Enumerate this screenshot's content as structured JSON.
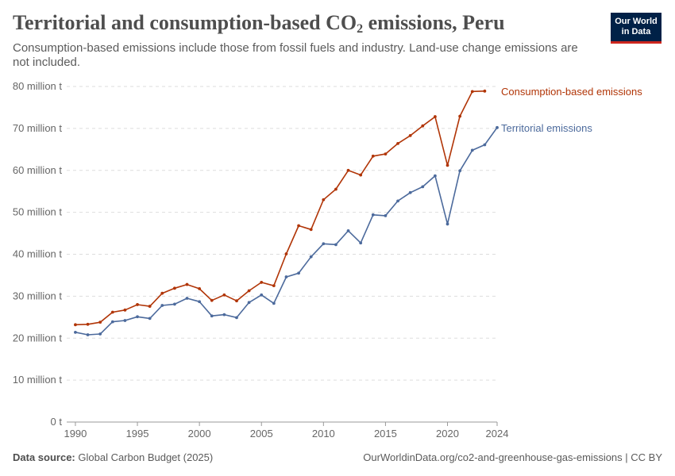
{
  "header": {
    "title_main": "Territorial and consumption-based CO",
    "title_sub": "2",
    "title_tail": " emissions, Peru",
    "subtitle": "Consumption-based emissions include those from fossil fuels and industry. Land-use change emissions are not included."
  },
  "logo": {
    "line1": "Our World",
    "line2": "in Data"
  },
  "footer": {
    "source_label": "Data source:",
    "source_value": "Global Carbon Budget (2025)",
    "url": "OurWorldinData.org/co2-and-greenhouse-gas-emissions | CC BY"
  },
  "chart_data": {
    "type": "line",
    "title": "Territorial and consumption-based CO₂ emissions, Peru",
    "xlabel": "",
    "ylabel": "",
    "x": [
      1990,
      1991,
      1992,
      1993,
      1994,
      1995,
      1996,
      1997,
      1998,
      1999,
      2000,
      2001,
      2002,
      2003,
      2004,
      2005,
      2006,
      2007,
      2008,
      2009,
      2010,
      2011,
      2012,
      2013,
      2014,
      2015,
      2016,
      2017,
      2018,
      2019,
      2020,
      2021,
      2022,
      2023,
      2024
    ],
    "xlim": [
      1989.3,
      2024
    ],
    "ylim": [
      0,
      80
    ],
    "y_ticks": [
      0,
      10,
      20,
      30,
      40,
      50,
      60,
      70,
      80
    ],
    "y_tick_labels": [
      "0 t",
      "10 million t",
      "20 million t",
      "30 million t",
      "40 million t",
      "50 million t",
      "60 million t",
      "70 million t",
      "80 million t"
    ],
    "x_ticks": [
      1990,
      1995,
      2000,
      2005,
      2010,
      2015,
      2020,
      2024
    ],
    "x_tick_labels": [
      "1990",
      "1995",
      "2000",
      "2005",
      "2010",
      "2015",
      "2020",
      "2024"
    ],
    "grid": "horizontal dashed",
    "legend": "inline labels at line ends (right)",
    "series": [
      {
        "name": "Consumption-based emissions",
        "color": "#b13507",
        "values": [
          23.2,
          23.3,
          23.8,
          26.2,
          26.7,
          28.0,
          27.6,
          30.7,
          31.9,
          32.8,
          31.8,
          29.0,
          30.3,
          28.9,
          31.3,
          33.3,
          32.5,
          40.1,
          46.8,
          45.9,
          53.0,
          55.5,
          60.0,
          58.9,
          63.4,
          63.9,
          66.4,
          68.3,
          70.6,
          72.8,
          61.2,
          72.9,
          78.8,
          78.9,
          null
        ]
      },
      {
        "name": "Territorial emissions",
        "color": "#4c6a9c",
        "values": [
          21.4,
          20.8,
          21.0,
          23.9,
          24.2,
          25.1,
          24.7,
          27.8,
          28.1,
          29.5,
          28.7,
          25.3,
          25.6,
          24.9,
          28.5,
          30.3,
          28.3,
          34.6,
          35.5,
          39.4,
          42.5,
          42.3,
          45.6,
          42.7,
          49.4,
          49.2,
          52.7,
          54.7,
          56.1,
          58.7,
          47.2,
          59.9,
          64.8,
          66.1,
          70.2
        ]
      }
    ]
  }
}
